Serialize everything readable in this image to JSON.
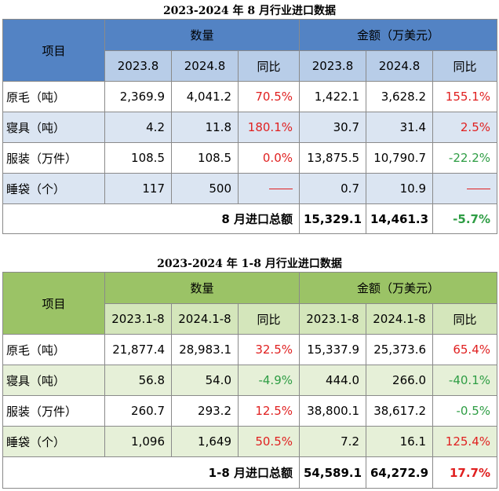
{
  "table1": {
    "title": "2023-2024 年 8 月行业进口数据",
    "item_header": "项目",
    "group_quantity": "数量",
    "group_amount": "金额（万美元）",
    "sub_headers": [
      "2023.8",
      "2024.8",
      "同比",
      "2023.8",
      "2024.8",
      "同比"
    ],
    "rows": [
      {
        "label": "原毛（吨）",
        "q1": "2,369.9",
        "q2": "4,041.2",
        "qy": "70.5%",
        "a1": "1,422.1",
        "a2": "3,628.2",
        "ay": "155.1%"
      },
      {
        "label": "寝具（吨）",
        "q1": "4.2",
        "q2": "11.8",
        "qy": "180.1%",
        "a1": "30.7",
        "a2": "31.4",
        "ay": "2.5%"
      },
      {
        "label": "服装（万件）",
        "q1": "108.5",
        "q2": "108.5",
        "qy": "0.0%",
        "a1": "13,875.5",
        "a2": "10,790.7",
        "ay": "-22.2%"
      },
      {
        "label": "睡袋（个）",
        "q1": "117",
        "q2": "500",
        "qy": "",
        "a1": "0.7",
        "a2": "10.9",
        "ay": ""
      }
    ],
    "total": {
      "label": "8 月进口总额",
      "a1": "15,329.1",
      "a2": "14,461.3",
      "ay": "-5.7%"
    }
  },
  "table2": {
    "title": "2023-2024 年 1-8 月行业进口数据",
    "item_header": "项目",
    "group_quantity": "数量",
    "group_amount": "金额（万美元）",
    "sub_headers": [
      "2023.1-8",
      "2024.1-8",
      "同比",
      "2023.1-8",
      "2024.1-8",
      "同比"
    ],
    "rows": [
      {
        "label": "原毛（吨）",
        "q1": "21,877.4",
        "q2": "28,983.1",
        "qy": "32.5%",
        "a1": "15,337.9",
        "a2": "25,373.6",
        "ay": "65.4%"
      },
      {
        "label": "寝具（吨）",
        "q1": "56.8",
        "q2": "54.0",
        "qy": "-4.9%",
        "a1": "444.0",
        "a2": "266.0",
        "ay": "-40.1%"
      },
      {
        "label": "服装（万件）",
        "q1": "260.7",
        "q2": "293.2",
        "qy": "12.5%",
        "a1": "38,800.1",
        "a2": "38,617.2",
        "ay": "-0.5%"
      },
      {
        "label": "睡袋（个）",
        "q1": "1,096",
        "q2": "1,649",
        "qy": "50.5%",
        "a1": "7.2",
        "a2": "16.1",
        "ay": "125.4%"
      }
    ],
    "total": {
      "label": "1-8 月进口总额",
      "a1": "54,589.1",
      "a2": "64,272.9",
      "ay": "17.7%"
    }
  },
  "colors": {
    "blue_header": "#5383c4",
    "blue_subheader": "#b8cde8",
    "blue_stripe": "#dbe5f2",
    "green_header": "#9bc366",
    "green_subheader": "#d4e6bb",
    "green_stripe": "#e6f0d8",
    "positive": "#e02020",
    "negative": "#2e9d44"
  }
}
